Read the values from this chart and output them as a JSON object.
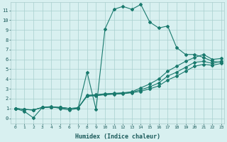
{
  "xlabel": "Humidex (Indice chaleur)",
  "bg_color": "#d8f0f0",
  "grid_color": "#a8d0ce",
  "line_color": "#1a7a6e",
  "xlim": [
    -0.5,
    23.3
  ],
  "ylim": [
    -0.5,
    11.8
  ],
  "yticks": [
    0,
    1,
    2,
    3,
    4,
    5,
    6,
    7,
    8,
    9,
    10,
    11
  ],
  "xticks": [
    0,
    1,
    2,
    3,
    4,
    5,
    6,
    7,
    8,
    9,
    10,
    11,
    12,
    13,
    14,
    15,
    16,
    17,
    18,
    19,
    20,
    21,
    22,
    23
  ],
  "curve1_x": [
    0,
    1,
    2,
    3,
    4,
    5,
    6,
    7,
    8,
    9,
    10,
    11,
    12,
    13,
    14,
    15,
    16,
    17,
    18,
    19,
    20,
    21,
    22,
    23
  ],
  "curve1_y": [
    1.0,
    0.7,
    0.05,
    1.1,
    1.2,
    1.0,
    0.85,
    1.0,
    4.7,
    0.9,
    9.1,
    11.1,
    11.4,
    11.1,
    11.6,
    9.8,
    9.2,
    9.4,
    7.2,
    6.5,
    6.5,
    6.2,
    5.8,
    5.7
  ],
  "curve2_x": [
    0,
    1,
    2,
    3,
    4,
    5,
    6,
    7,
    8,
    9,
    10,
    11,
    12,
    13,
    14,
    15,
    16,
    17,
    18,
    19,
    20,
    21,
    22,
    23
  ],
  "curve2_y": [
    1.0,
    0.9,
    0.85,
    1.1,
    1.15,
    1.1,
    1.0,
    1.05,
    2.35,
    2.4,
    2.5,
    2.55,
    2.6,
    2.7,
    3.1,
    3.5,
    4.0,
    4.8,
    5.3,
    5.8,
    6.2,
    6.5,
    6.0,
    6.1
  ],
  "curve3_x": [
    0,
    1,
    2,
    3,
    4,
    5,
    6,
    7,
    8,
    9,
    10,
    11,
    12,
    13,
    14,
    15,
    16,
    17,
    18,
    19,
    20,
    21,
    22,
    23
  ],
  "curve3_y": [
    1.0,
    0.9,
    0.85,
    1.1,
    1.15,
    1.1,
    1.0,
    1.05,
    2.3,
    2.35,
    2.45,
    2.5,
    2.55,
    2.65,
    2.9,
    3.2,
    3.6,
    4.3,
    4.7,
    5.2,
    5.7,
    5.8,
    5.6,
    5.8
  ],
  "curve4_x": [
    0,
    1,
    2,
    3,
    4,
    5,
    6,
    7,
    8,
    9,
    10,
    11,
    12,
    13,
    14,
    15,
    16,
    17,
    18,
    19,
    20,
    21,
    22,
    23
  ],
  "curve4_y": [
    1.0,
    0.9,
    0.85,
    1.1,
    1.15,
    1.1,
    1.0,
    1.05,
    2.25,
    2.3,
    2.4,
    2.45,
    2.5,
    2.6,
    2.75,
    3.0,
    3.3,
    3.9,
    4.3,
    4.8,
    5.3,
    5.5,
    5.4,
    5.6
  ]
}
